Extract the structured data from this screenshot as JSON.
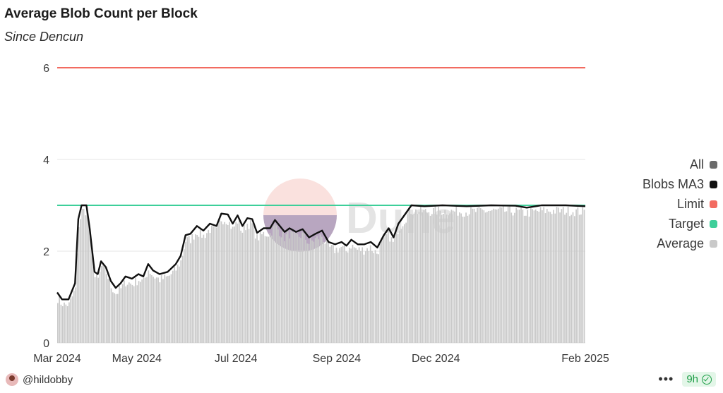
{
  "header": {
    "title": "Average Blob Count per Block",
    "subtitle": "Since Dencun"
  },
  "footer": {
    "author": "@hildobby",
    "more_label": "•••",
    "age": "9h"
  },
  "colors": {
    "average": "#c9c9c9",
    "ma3": "#111111",
    "limit": "#f26b61",
    "target": "#3ecf9a",
    "all": "#6b6b6b"
  },
  "chart_data": {
    "type": "bar",
    "title": "Average Blob Count per Block",
    "subtitle": "Since Dencun",
    "ylim": [
      0,
      6
    ],
    "yticks": [
      "0",
      "2",
      "4",
      "6"
    ],
    "xlim": [
      "2024-03-13",
      "2025-02-01"
    ],
    "xticks": [
      {
        "label": "Mar 2024",
        "date": "2024-03-01"
      },
      {
        "label": "May 2024",
        "date": "2024-05-01"
      },
      {
        "label": "Jul 2024",
        "date": "2024-07-01"
      },
      {
        "label": "Sep 2024",
        "date": "2024-09-01"
      },
      {
        "label": "Dec 2024",
        "date": "2024-11-01"
      },
      {
        "label": "Feb 2025",
        "date": "2025-01-01"
      }
    ],
    "legend_position": "right",
    "legend": [
      "All",
      "Blobs MA3",
      "Limit",
      "Target",
      "Average"
    ],
    "reference_lines": [
      {
        "name": "Limit",
        "value": 6
      },
      {
        "name": "Target",
        "value": 3
      }
    ],
    "series": [
      {
        "name": "Blobs MA3",
        "kind": "line",
        "points": [
          [
            "2024-03-13",
            1.1
          ],
          [
            "2024-03-16",
            0.95
          ],
          [
            "2024-03-20",
            0.95
          ],
          [
            "2024-03-24",
            1.3
          ],
          [
            "2024-03-26",
            2.7
          ],
          [
            "2024-03-28",
            3.0
          ],
          [
            "2024-03-31",
            3.0
          ],
          [
            "2024-04-02",
            2.5
          ],
          [
            "2024-04-05",
            1.55
          ],
          [
            "2024-04-07",
            1.5
          ],
          [
            "2024-04-09",
            1.78
          ],
          [
            "2024-04-12",
            1.65
          ],
          [
            "2024-04-15",
            1.35
          ],
          [
            "2024-04-18",
            1.2
          ],
          [
            "2024-04-21",
            1.3
          ],
          [
            "2024-04-24",
            1.45
          ],
          [
            "2024-04-28",
            1.4
          ],
          [
            "2024-05-02",
            1.5
          ],
          [
            "2024-05-05",
            1.45
          ],
          [
            "2024-05-08",
            1.72
          ],
          [
            "2024-05-11",
            1.58
          ],
          [
            "2024-05-15",
            1.5
          ],
          [
            "2024-05-20",
            1.55
          ],
          [
            "2024-05-25",
            1.72
          ],
          [
            "2024-05-28",
            1.9
          ],
          [
            "2024-05-31",
            2.35
          ],
          [
            "2024-06-03",
            2.38
          ],
          [
            "2024-06-07",
            2.55
          ],
          [
            "2024-06-11",
            2.45
          ],
          [
            "2024-06-15",
            2.6
          ],
          [
            "2024-06-19",
            2.55
          ],
          [
            "2024-06-22",
            2.82
          ],
          [
            "2024-06-26",
            2.8
          ],
          [
            "2024-06-29",
            2.6
          ],
          [
            "2024-07-02",
            2.78
          ],
          [
            "2024-07-05",
            2.55
          ],
          [
            "2024-07-08",
            2.72
          ],
          [
            "2024-07-11",
            2.7
          ],
          [
            "2024-07-14",
            2.4
          ],
          [
            "2024-07-18",
            2.5
          ],
          [
            "2024-07-22",
            2.5
          ],
          [
            "2024-07-25",
            2.68
          ],
          [
            "2024-07-28",
            2.55
          ],
          [
            "2024-07-31",
            2.42
          ],
          [
            "2024-08-03",
            2.5
          ],
          [
            "2024-08-07",
            2.42
          ],
          [
            "2024-08-11",
            2.48
          ],
          [
            "2024-08-15",
            2.3
          ],
          [
            "2024-08-19",
            2.38
          ],
          [
            "2024-08-23",
            2.45
          ],
          [
            "2024-08-27",
            2.2
          ],
          [
            "2024-08-31",
            2.15
          ],
          [
            "2024-09-04",
            2.2
          ],
          [
            "2024-09-07",
            2.12
          ],
          [
            "2024-09-10",
            2.25
          ],
          [
            "2024-09-14",
            2.15
          ],
          [
            "2024-09-18",
            2.15
          ],
          [
            "2024-09-22",
            2.2
          ],
          [
            "2024-09-26",
            2.08
          ],
          [
            "2024-09-30",
            2.35
          ],
          [
            "2024-10-03",
            2.5
          ],
          [
            "2024-10-06",
            2.3
          ],
          [
            "2024-10-09",
            2.6
          ],
          [
            "2024-10-13",
            2.8
          ],
          [
            "2024-10-17",
            3.0
          ],
          [
            "2024-10-25",
            2.98
          ],
          [
            "2024-11-05",
            3.0
          ],
          [
            "2024-11-20",
            2.98
          ],
          [
            "2024-12-05",
            3.0
          ],
          [
            "2024-12-20",
            2.99
          ],
          [
            "2024-12-27",
            2.95
          ],
          [
            "2025-01-05",
            3.0
          ],
          [
            "2025-01-20",
            3.0
          ],
          [
            "2025-02-01",
            2.98
          ]
        ]
      },
      {
        "name": "Average",
        "kind": "bar",
        "note": "daily average bars, roughly 0.1 below MA3 with daily noise",
        "base_offset": -0.12
      }
    ],
    "annotations": [
      "Dune"
    ]
  }
}
